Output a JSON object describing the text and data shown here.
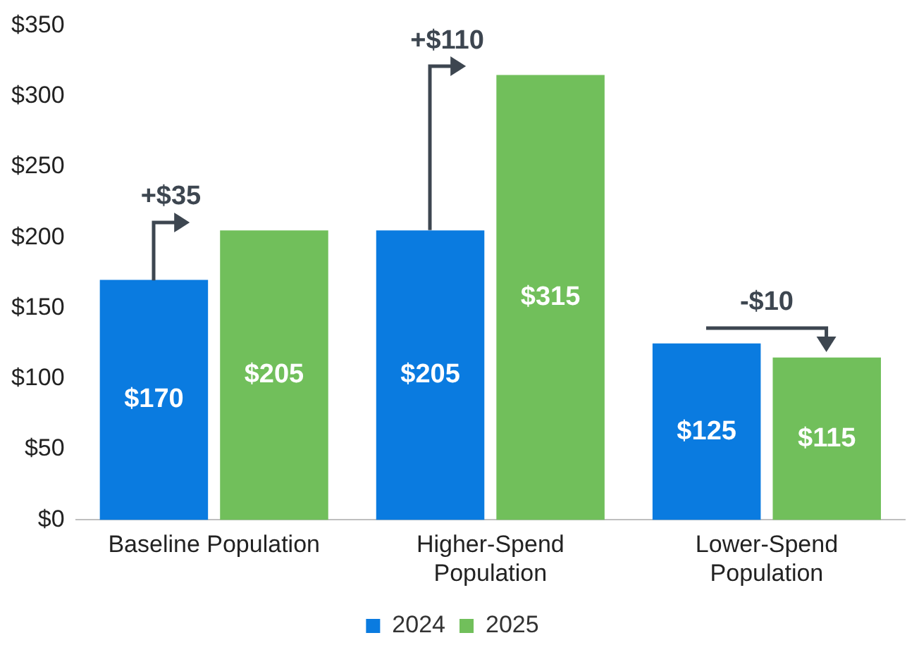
{
  "chart_data": {
    "type": "bar",
    "categories": [
      "Baseline Population",
      "Higher-Spend Population",
      "Lower-Spend Population"
    ],
    "series": [
      {
        "name": "2024",
        "color": "#0a7be0",
        "values": [
          170,
          205,
          125
        ],
        "value_labels": [
          "$170",
          "$205",
          "$125"
        ]
      },
      {
        "name": "2025",
        "color": "#71bf5b",
        "values": [
          205,
          315,
          115
        ],
        "value_labels": [
          "$205",
          "$315",
          "$115"
        ]
      }
    ],
    "ylim": [
      0,
      350
    ],
    "yticks": [
      {
        "value": 0,
        "label": "$0"
      },
      {
        "value": 50,
        "label": "$50"
      },
      {
        "value": 100,
        "label": "$100"
      },
      {
        "value": 150,
        "label": "$150"
      },
      {
        "value": 200,
        "label": "$200"
      },
      {
        "value": 250,
        "label": "$250"
      },
      {
        "value": 300,
        "label": "$300"
      },
      {
        "value": 350,
        "label": "$350"
      }
    ],
    "annotations": [
      {
        "text": "+$35",
        "x": "Baseline Population",
        "y": 205
      },
      {
        "text": "+$110",
        "x": "Higher-Spend Population",
        "y": 315
      },
      {
        "text": "-$10",
        "x": "Lower-Spend Population",
        "y": 115
      }
    ],
    "grid": false,
    "legend": "bottom"
  }
}
